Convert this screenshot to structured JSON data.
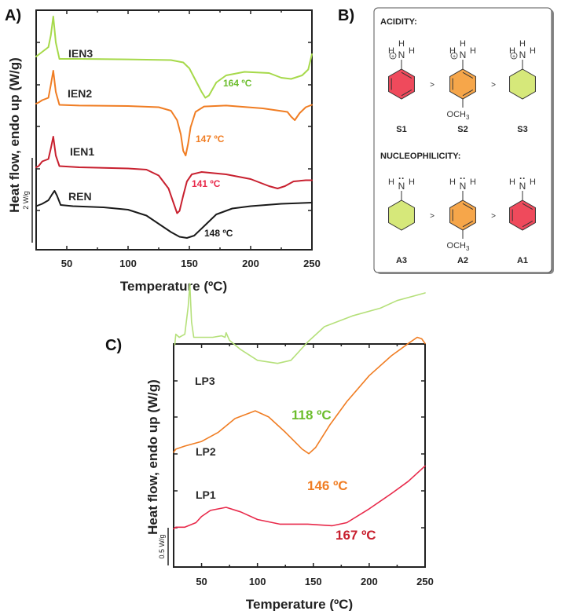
{
  "chart_data": [
    {
      "panel": "A)",
      "type": "line",
      "title": "",
      "xlabel": "Temperature (ºC)",
      "ylabel": "Heat flow, endo up (W/g)",
      "scale_bar_label": "2 W/g",
      "xlim": [
        25,
        250
      ],
      "xticks": [
        50,
        100,
        150,
        200,
        250
      ],
      "grid": false,
      "legend": "inline labels",
      "series": [
        {
          "name": "IEN3",
          "color": "#a6d94a",
          "annotation": "164 ºC",
          "annotation_color": "#6cbd2d",
          "points": [
            [
              25,
              3.1
            ],
            [
              30,
              3.3
            ],
            [
              35,
              3.5
            ],
            [
              37,
              4.0
            ],
            [
              39,
              4.8
            ],
            [
              41,
              3.7
            ],
            [
              44,
              3.0
            ],
            [
              60,
              3.0
            ],
            [
              100,
              2.98
            ],
            [
              135,
              2.95
            ],
            [
              145,
              2.85
            ],
            [
              150,
              2.6
            ],
            [
              155,
              2.1
            ],
            [
              160,
              1.6
            ],
            [
              163,
              1.35
            ],
            [
              166,
              1.45
            ],
            [
              172,
              2.0
            ],
            [
              180,
              2.3
            ],
            [
              195,
              2.45
            ],
            [
              215,
              2.4
            ],
            [
              225,
              2.2
            ],
            [
              233,
              2.15
            ],
            [
              242,
              2.3
            ],
            [
              247,
              2.55
            ],
            [
              250,
              3.2
            ]
          ]
        },
        {
          "name": "IEN2",
          "color": "#f07d23",
          "annotation": "147 ºC",
          "annotation_color": "#f07d23",
          "points": [
            [
              25,
              1.1
            ],
            [
              27,
              1.15
            ],
            [
              30,
              1.25
            ],
            [
              35,
              1.35
            ],
            [
              37,
              1.9
            ],
            [
              39,
              2.5
            ],
            [
              41,
              1.6
            ],
            [
              44,
              1.05
            ],
            [
              60,
              1.02
            ],
            [
              100,
              1.0
            ],
            [
              125,
              0.95
            ],
            [
              135,
              0.8
            ],
            [
              140,
              0.4
            ],
            [
              143,
              -0.2
            ],
            [
              145,
              -0.9
            ],
            [
              147,
              -1.1
            ],
            [
              149,
              -0.6
            ],
            [
              151,
              0.1
            ],
            [
              155,
              0.75
            ],
            [
              162,
              0.98
            ],
            [
              180,
              1.02
            ],
            [
              210,
              0.9
            ],
            [
              230,
              0.75
            ],
            [
              233,
              0.55
            ],
            [
              236,
              0.4
            ],
            [
              240,
              0.7
            ],
            [
              245,
              0.95
            ],
            [
              250,
              1.05
            ]
          ]
        },
        {
          "name": "IEN1",
          "color": "#c8202f",
          "annotation": "141 ºC",
          "annotation_color": "#e8294a",
          "points": [
            [
              25,
              -1.6
            ],
            [
              27,
              -1.55
            ],
            [
              30,
              -1.35
            ],
            [
              35,
              -1.25
            ],
            [
              37,
              -0.8
            ],
            [
              39,
              -0.3
            ],
            [
              41,
              -1.1
            ],
            [
              44,
              -1.55
            ],
            [
              60,
              -1.6
            ],
            [
              100,
              -1.65
            ],
            [
              115,
              -1.7
            ],
            [
              125,
              -1.95
            ],
            [
              133,
              -2.5
            ],
            [
              137,
              -3.1
            ],
            [
              140,
              -3.55
            ],
            [
              142,
              -3.45
            ],
            [
              145,
              -2.8
            ],
            [
              148,
              -2.2
            ],
            [
              152,
              -1.9
            ],
            [
              160,
              -1.8
            ],
            [
              180,
              -1.9
            ],
            [
              200,
              -2.1
            ],
            [
              215,
              -2.4
            ],
            [
              222,
              -2.5
            ],
            [
              228,
              -2.4
            ],
            [
              235,
              -2.2
            ],
            [
              245,
              -2.15
            ],
            [
              250,
              -2.15
            ]
          ]
        },
        {
          "name": "REN",
          "color": "#1a1a1a",
          "annotation": "148 ºC",
          "annotation_color": "#1a1a1a",
          "points": [
            [
              25,
              -3.25
            ],
            [
              30,
              -3.15
            ],
            [
              35,
              -3.0
            ],
            [
              38,
              -2.75
            ],
            [
              40,
              -2.6
            ],
            [
              42,
              -2.8
            ],
            [
              45,
              -3.2
            ],
            [
              55,
              -3.25
            ],
            [
              80,
              -3.3
            ],
            [
              100,
              -3.4
            ],
            [
              115,
              -3.65
            ],
            [
              125,
              -4.0
            ],
            [
              135,
              -4.35
            ],
            [
              142,
              -4.55
            ],
            [
              148,
              -4.6
            ],
            [
              154,
              -4.5
            ],
            [
              162,
              -4.1
            ],
            [
              172,
              -3.6
            ],
            [
              185,
              -3.35
            ],
            [
              200,
              -3.25
            ],
            [
              225,
              -3.15
            ],
            [
              250,
              -3.1
            ]
          ]
        }
      ]
    },
    {
      "panel": "C)",
      "type": "line",
      "title": "",
      "xlabel": "Temperature (ºC)",
      "ylabel": "Heat flow, endo up (W/g)",
      "scale_bar_label": "0.5 W/g",
      "xlim": [
        25,
        250
      ],
      "xticks": [
        50,
        100,
        150,
        200,
        250
      ],
      "grid": false,
      "legend": "inline labels",
      "series": [
        {
          "name": "LP3",
          "color": "#b5e07a",
          "annotation": "118 ºC",
          "annotation_color": "#6cbd2d",
          "points": [
            [
              26,
              1.55
            ],
            [
              27,
              1.62
            ],
            [
              30,
              1.6
            ],
            [
              35,
              1.62
            ],
            [
              38,
              1.8
            ],
            [
              39.5,
              1.95
            ],
            [
              41,
              1.7
            ],
            [
              43,
              1.6
            ],
            [
              60,
              1.6
            ],
            [
              68,
              1.61
            ],
            [
              71,
              1.6
            ],
            [
              72,
              1.63
            ],
            [
              75,
              1.58
            ],
            [
              85,
              1.52
            ],
            [
              100,
              1.45
            ],
            [
              118,
              1.43
            ],
            [
              130,
              1.45
            ],
            [
              145,
              1.57
            ],
            [
              160,
              1.67
            ],
            [
              185,
              1.74
            ],
            [
              210,
              1.79
            ],
            [
              225,
              1.84
            ],
            [
              240,
              1.87
            ],
            [
              250,
              1.89
            ]
          ]
        },
        {
          "name": "LP2",
          "color": "#f07d23",
          "annotation": "146 ºC",
          "annotation_color": "#f07d23",
          "points": [
            [
              25,
              0.85
            ],
            [
              27,
              0.87
            ],
            [
              35,
              0.89
            ],
            [
              50,
              0.92
            ],
            [
              65,
              0.98
            ],
            [
              80,
              1.07
            ],
            [
              98,
              1.12
            ],
            [
              110,
              1.08
            ],
            [
              125,
              0.98
            ],
            [
              140,
              0.87
            ],
            [
              146,
              0.84
            ],
            [
              152,
              0.88
            ],
            [
              165,
              1.03
            ],
            [
              180,
              1.18
            ],
            [
              200,
              1.35
            ],
            [
              220,
              1.48
            ],
            [
              235,
              1.56
            ],
            [
              243,
              1.6
            ],
            [
              247,
              1.59
            ],
            [
              250,
              1.56
            ]
          ]
        },
        {
          "name": "LP1",
          "color": "#e8294a",
          "annotation": "167 ºC",
          "annotation_color": "#c8202f",
          "points": [
            [
              25,
              0.35
            ],
            [
              27,
              0.36
            ],
            [
              35,
              0.36
            ],
            [
              45,
              0.39
            ],
            [
              50,
              0.43
            ],
            [
              58,
              0.47
            ],
            [
              72,
              0.49
            ],
            [
              85,
              0.46
            ],
            [
              100,
              0.41
            ],
            [
              120,
              0.38
            ],
            [
              145,
              0.38
            ],
            [
              167,
              0.37
            ],
            [
              180,
              0.39
            ],
            [
              200,
              0.48
            ],
            [
              220,
              0.58
            ],
            [
              235,
              0.66
            ],
            [
              250,
              0.76
            ]
          ]
        }
      ]
    }
  ],
  "panel_b": {
    "label": "B)",
    "acidity": {
      "heading": "ACIDITY:",
      "compounds": [
        {
          "id": "S1",
          "ring": "aromatic",
          "fill": "#ef4a5c",
          "substituent": "",
          "amine": "NH3+"
        },
        {
          "id": "S2",
          "ring": "aromatic",
          "fill": "#f6a64a",
          "substituent": "OCH3",
          "amine": "NH3+"
        },
        {
          "id": "S3",
          "ring": "cyclohexyl",
          "fill": "#d6e87a",
          "substituent": "",
          "amine": "NH3+"
        }
      ],
      "comparator": ">"
    },
    "nucleophilicity": {
      "heading": "NUCLEOPHILICITY:",
      "compounds": [
        {
          "id": "A3",
          "ring": "cyclohexyl",
          "fill": "#d6e87a",
          "substituent": "",
          "amine": "NH2"
        },
        {
          "id": "A2",
          "ring": "aromatic",
          "fill": "#f6a64a",
          "substituent": "OCH3",
          "amine": "NH2"
        },
        {
          "id": "A1",
          "ring": "aromatic",
          "fill": "#ef4a5c",
          "substituent": "",
          "amine": "NH2"
        }
      ],
      "comparator": ">"
    },
    "atoms": {
      "N": "N",
      "H": "H",
      "plus": "+",
      "och3_main": "OCH",
      "och3_sub": "3",
      "lone_pair": "··"
    }
  }
}
